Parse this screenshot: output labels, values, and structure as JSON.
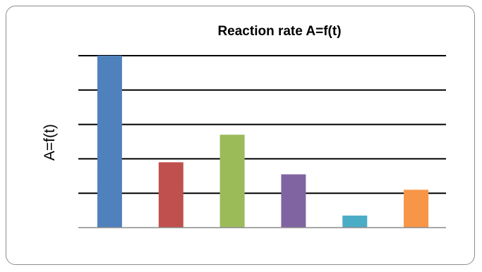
{
  "chart_data": {
    "type": "bar",
    "title": "Reaction  rate A=f(t)",
    "xlabel": "",
    "ylabel": "A=f(t)",
    "categories": [
      "",
      "",
      "",
      "",
      "",
      ""
    ],
    "values": [
      5.0,
      1.9,
      2.7,
      1.55,
      0.35,
      1.1
    ],
    "ylim": [
      0,
      5
    ],
    "yticks": [
      0,
      1,
      2,
      3,
      4,
      5
    ],
    "grid": true,
    "legend": "none",
    "colors": [
      "#4f81bd",
      "#c0504d",
      "#9bbb59",
      "#8064a2",
      "#4bacc6",
      "#f79646"
    ]
  }
}
